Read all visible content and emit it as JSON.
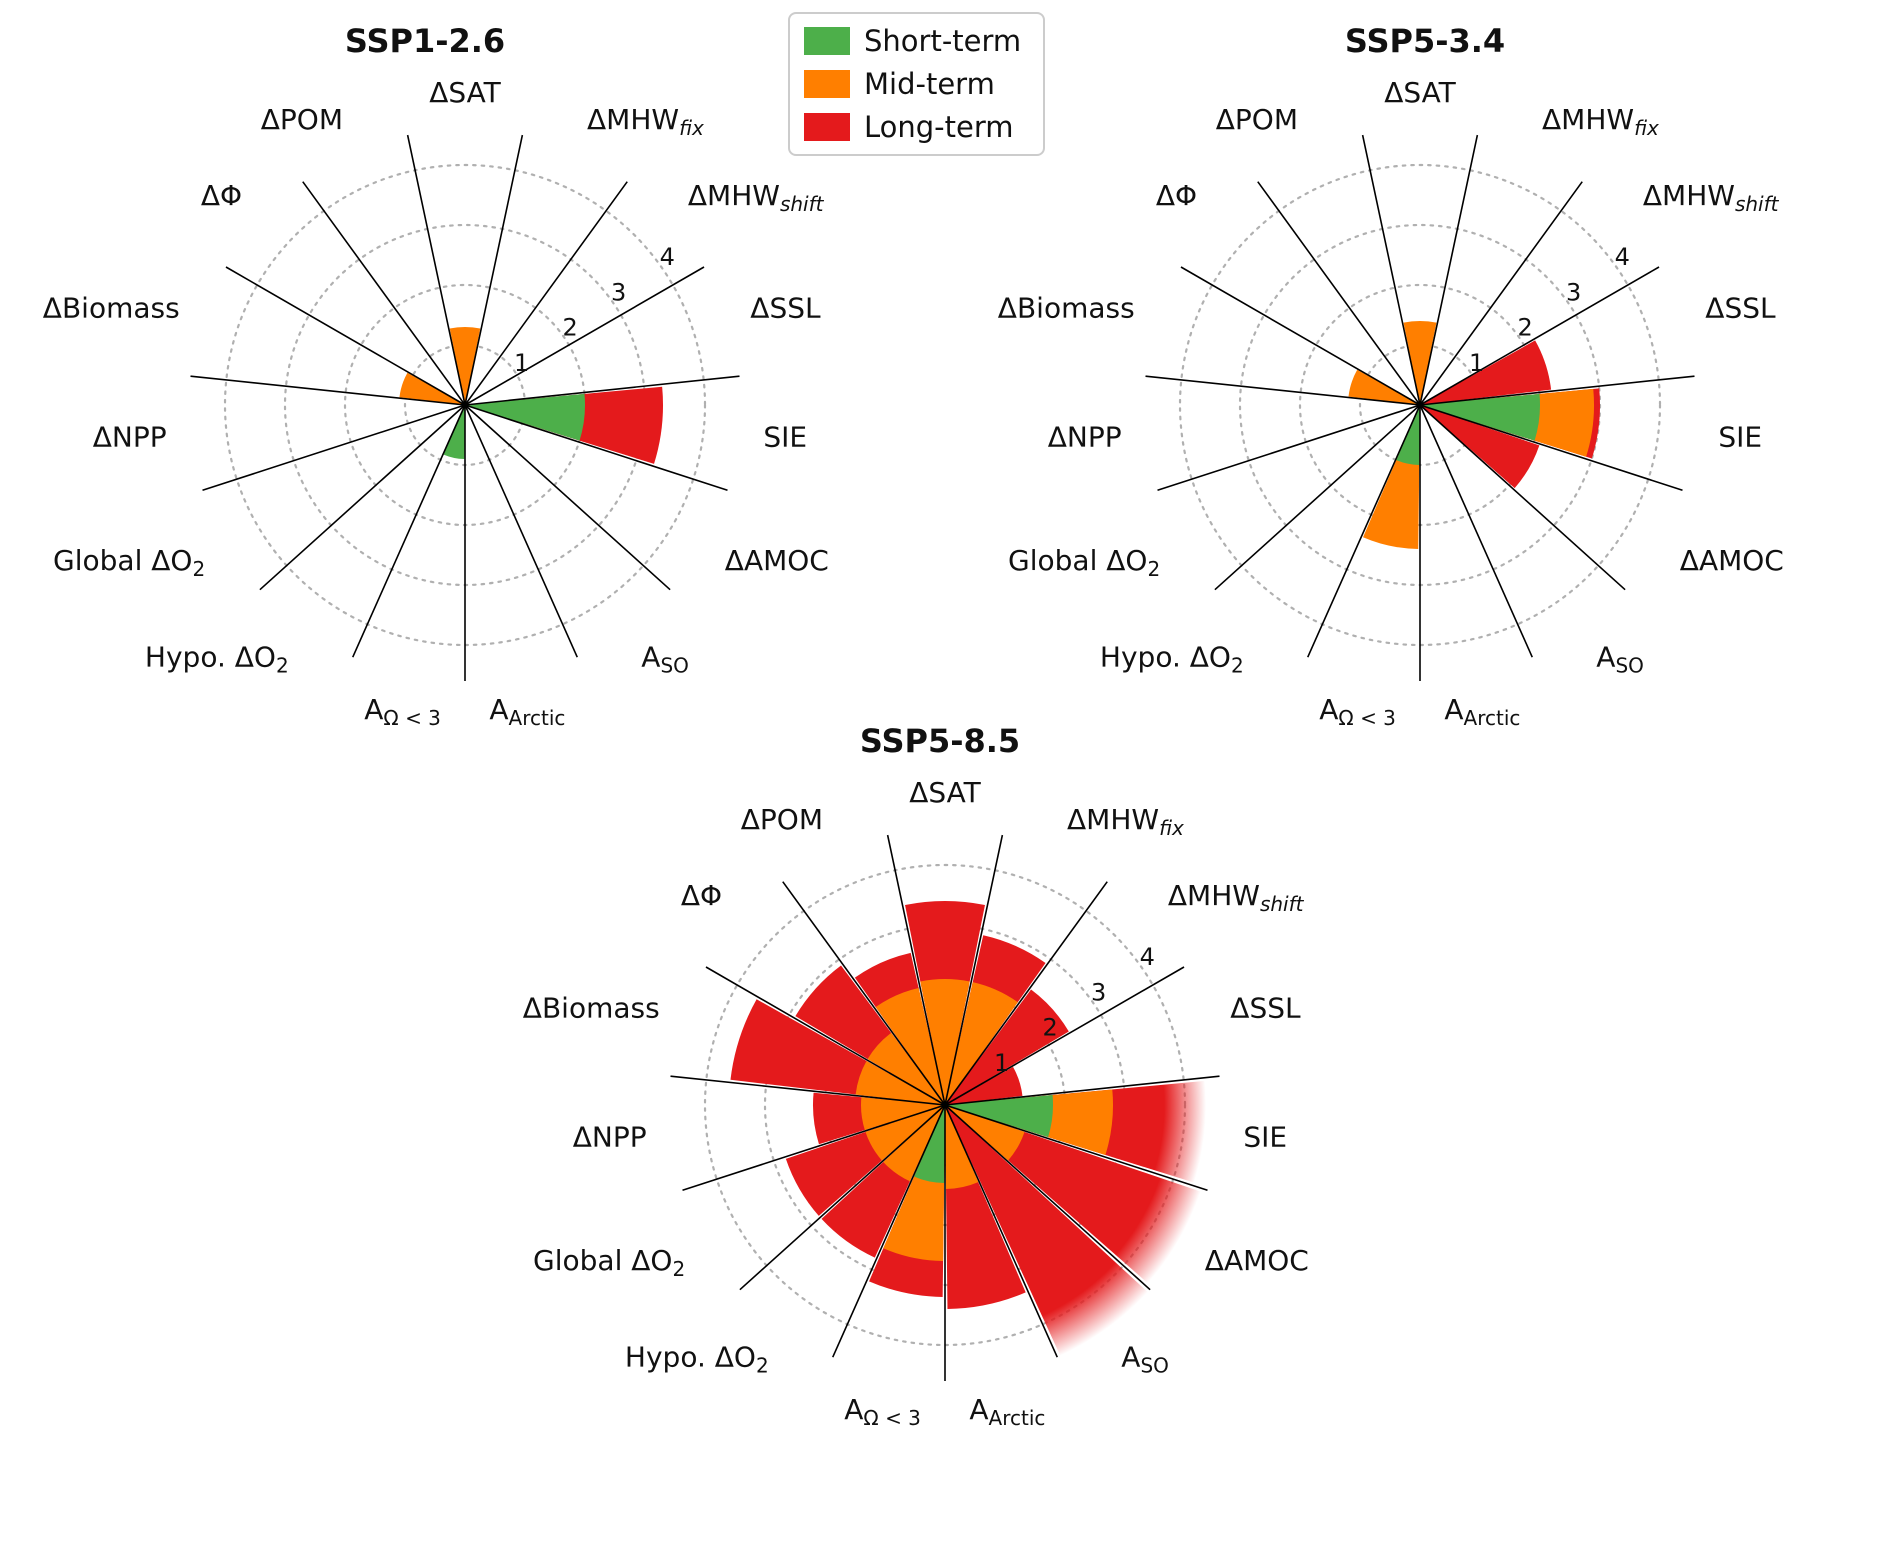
{
  "figure": {
    "description": "Polar bar (rose) charts of climate impact magnitudes for three scenarios"
  },
  "chart_data": {
    "type": "bar",
    "polar": true,
    "direction": "clockwise",
    "start": "top",
    "rlim": [
      0,
      4
    ],
    "rticks": [
      1,
      2,
      3,
      4
    ],
    "grid": "dotted",
    "fade_above": 4.2,
    "colors": {
      "short": "#4daf4a",
      "mid": "#ff7f00",
      "long": "#e41a1c"
    },
    "legend": {
      "position": "top-center",
      "items": [
        {
          "label": "Short-term",
          "color": "#4daf4a"
        },
        {
          "label": "Mid-term",
          "color": "#ff7f00"
        },
        {
          "label": "Long-term",
          "color": "#e41a1c"
        }
      ]
    },
    "categories": [
      {
        "text": "ΔSAT"
      },
      {
        "text": "ΔMHW",
        "sub": "fix",
        "italic_sub": true
      },
      {
        "text": "ΔMHW",
        "sub": "shift",
        "italic_sub": true
      },
      {
        "text": "ΔSSL"
      },
      {
        "text": "SIE"
      },
      {
        "text": "ΔAMOC"
      },
      {
        "text": "A",
        "sub": "SO"
      },
      {
        "text": "A",
        "sub": "Arctic"
      },
      {
        "text": "A",
        "sub": "Ω < 3"
      },
      {
        "text": "Hypo. ΔO",
        "sub": "2"
      },
      {
        "text": "Global ΔO",
        "sub": "2"
      },
      {
        "text": "ΔNPP"
      },
      {
        "text": "ΔBiomass"
      },
      {
        "text": "ΔΦ"
      },
      {
        "text": "ΔPOM"
      }
    ],
    "charts": [
      {
        "title": "SSP1-2.6",
        "series": {
          "short": [
            0,
            0,
            0,
            0,
            2.0,
            0,
            0,
            0,
            0.9,
            0,
            0,
            0,
            0,
            0,
            0
          ],
          "mid": [
            1.3,
            0,
            0,
            0,
            0,
            0,
            0,
            0,
            0,
            0,
            0,
            0,
            1.1,
            0,
            0
          ],
          "long": [
            0,
            0,
            0,
            0,
            3.3,
            0,
            0,
            0,
            0,
            0,
            0,
            0,
            0,
            0,
            0
          ]
        }
      },
      {
        "title": "SSP5-3.4",
        "series": {
          "short": [
            0,
            0,
            0,
            0,
            2.0,
            0,
            0,
            0,
            1.0,
            0,
            0,
            0,
            0,
            0,
            0
          ],
          "mid": [
            1.4,
            0,
            0,
            0,
            2.9,
            0,
            0,
            0,
            2.4,
            0,
            0,
            0,
            1.2,
            0,
            0
          ],
          "long": [
            0,
            0,
            0,
            2.2,
            3.0,
            2.1,
            0,
            0,
            0,
            0,
            0,
            0,
            0,
            0,
            0
          ]
        }
      },
      {
        "title": "SSP5-8.5",
        "series": {
          "short": [
            0,
            0,
            0,
            0,
            1.8,
            0,
            0,
            0,
            1.3,
            0,
            0,
            0,
            0,
            0,
            0
          ],
          "mid": [
            2.1,
            2.1,
            0,
            0,
            2.8,
            1.4,
            0,
            1.4,
            2.6,
            1.4,
            1.4,
            1.4,
            1.5,
            1.5,
            2.0
          ],
          "long": [
            3.4,
            2.9,
            2.4,
            1.3,
            4.35,
            4.5,
            4.6,
            3.4,
            3.2,
            2.8,
            2.8,
            2.2,
            3.6,
            2.9,
            2.6
          ]
        }
      }
    ]
  }
}
